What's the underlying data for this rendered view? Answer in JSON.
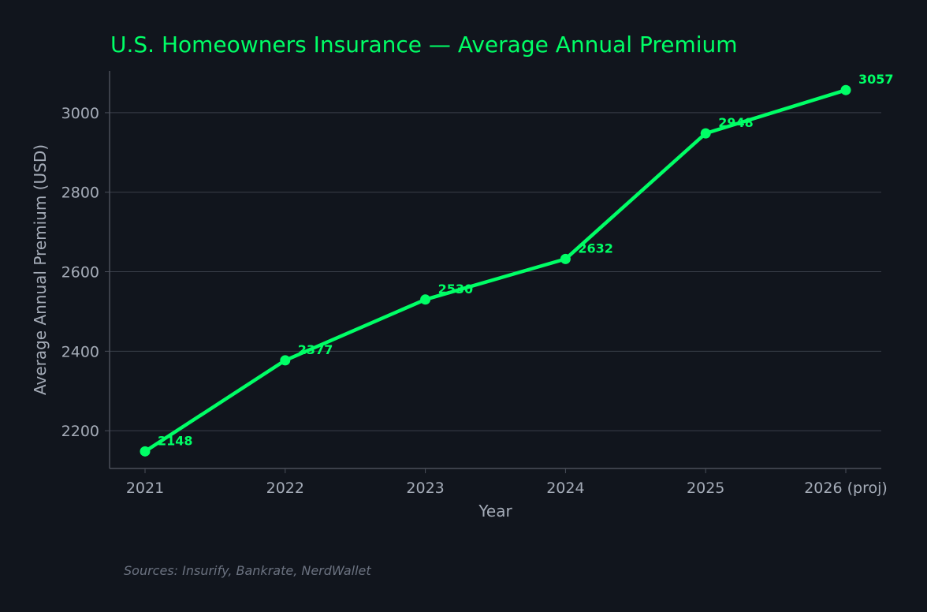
{
  "colors": {
    "background": "#11151d",
    "accent": "#00ff66",
    "axis_text": "#a5acb8",
    "grid": "#3a3f4a",
    "spine": "#4a4f5a",
    "source_text": "#6b7280"
  },
  "footer": {
    "source": "Sources: Insurify, Bankrate, NerdWallet"
  },
  "chart_data": {
    "type": "line",
    "title": "U.S. Homeowners Insurance — Average Annual Premium",
    "xlabel": "Year",
    "ylabel": "Average Annual Premium (USD)",
    "categories": [
      "2021",
      "2022",
      "2023",
      "2024",
      "2025",
      "2026 (proj)"
    ],
    "series": [
      {
        "values": [
          2148,
          2377,
          2530,
          2632,
          2948,
          3057
        ]
      }
    ],
    "data_labels": [
      "2148",
      "2377",
      "2530",
      "2632",
      "2948",
      "3057"
    ],
    "yticks": [
      2200,
      2400,
      2600,
      2800,
      3000
    ],
    "ytick_labels": [
      "2200",
      "2400",
      "2600",
      "2800",
      "3000"
    ],
    "ylim": [
      2105,
      3105
    ],
    "grid": "horizontal",
    "legend": "none"
  }
}
